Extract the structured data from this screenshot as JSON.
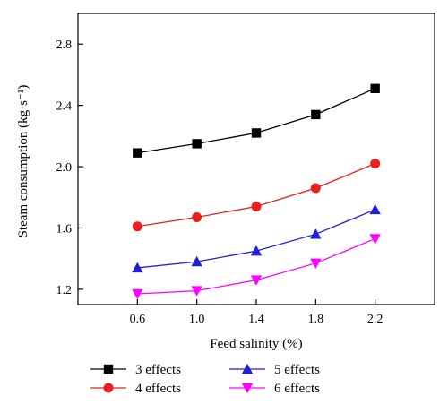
{
  "chart_data": {
    "type": "line",
    "title": "",
    "xlabel": "Feed salinity (%)",
    "ylabel": "Steam consumption (kg·s⁻¹)",
    "x": [
      0.6,
      1.0,
      1.4,
      1.8,
      2.2
    ],
    "xticks": [
      "0.6",
      "1.0",
      "1.4",
      "1.8",
      "2.2"
    ],
    "yticks": [
      "1.2",
      "1.6",
      "2.0",
      "2.4",
      "2.8"
    ],
    "xlim": [
      0.2,
      2.6
    ],
    "ylim": [
      1.1,
      3.0
    ],
    "grid": false,
    "legend_position": "bottom",
    "series": [
      {
        "name": "3 effects",
        "color": "#000000",
        "marker": "square",
        "values": [
          2.09,
          2.15,
          2.22,
          2.34,
          2.51
        ]
      },
      {
        "name": "4 effects",
        "color": "#e8201f",
        "marker": "circle",
        "values": [
          1.61,
          1.67,
          1.74,
          1.86,
          2.02
        ]
      },
      {
        "name": "5 effects",
        "color": "#1f1fd6",
        "marker": "triangle-up",
        "values": [
          1.34,
          1.38,
          1.45,
          1.56,
          1.72
        ]
      },
      {
        "name": "6 effects",
        "color": "#ff00ff",
        "marker": "triangle-down",
        "values": [
          1.17,
          1.19,
          1.26,
          1.37,
          1.53
        ]
      }
    ]
  }
}
